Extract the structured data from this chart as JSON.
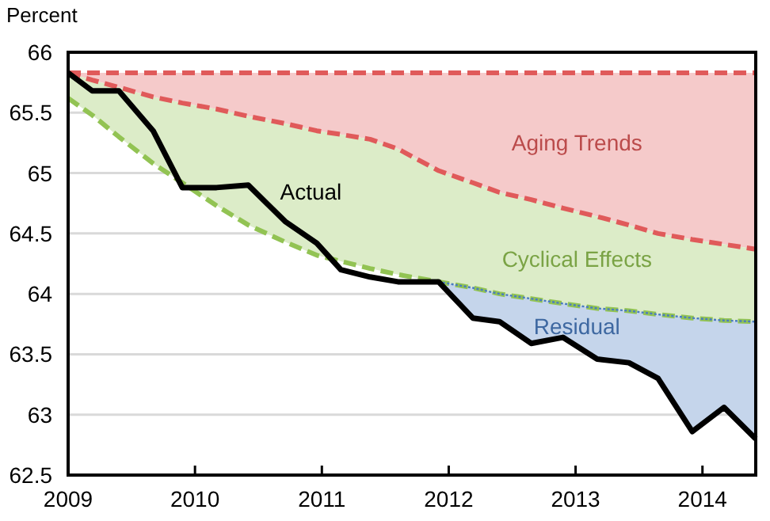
{
  "chart_data": {
    "type": "line",
    "ylabel": "Percent",
    "x": [
      2009,
      2009.19,
      2009.4,
      2009.67,
      2009.9,
      2010.17,
      2010.42,
      2010.71,
      2010.96,
      2011.15,
      2011.38,
      2011.6,
      2011.92,
      2012.19,
      2012.4,
      2012.65,
      2012.9,
      2013.17,
      2013.42,
      2013.65,
      2013.92,
      2014.17,
      2014.42
    ],
    "xlim": [
      2009,
      2014.42
    ],
    "xticks": [
      2009,
      2010,
      2011,
      2012,
      2013,
      2014
    ],
    "ylim": [
      62.5,
      66
    ],
    "yticks": [
      62.5,
      63,
      63.5,
      64,
      64.5,
      65,
      65.5,
      66
    ],
    "grid": "y",
    "legend": false,
    "marker": "none",
    "series": [
      {
        "color": "#e05a5a",
        "line_style": "dashed",
        "values": [
          65.83,
          65.83,
          65.83,
          65.83,
          65.83,
          65.83,
          65.83,
          65.83,
          65.83,
          65.83,
          65.83,
          65.83,
          65.83,
          65.83,
          65.83,
          65.83,
          65.83,
          65.83,
          65.83,
          65.83,
          65.83,
          65.83,
          65.83
        ]
      },
      {
        "name": "Aging Trends",
        "color": "#e05a5a",
        "line_style": "dashed",
        "values": [
          65.83,
          65.77,
          65.71,
          65.63,
          65.58,
          65.53,
          65.47,
          65.41,
          65.35,
          65.32,
          65.28,
          65.2,
          65.02,
          64.92,
          64.84,
          64.78,
          64.71,
          64.64,
          64.57,
          64.5,
          64.45,
          64.41,
          64.37
        ],
        "lower": [
          65.83,
          65.77,
          65.71,
          65.63,
          65.58,
          65.53,
          65.47,
          65.41,
          65.35,
          65.32,
          65.28,
          65.2,
          65.02,
          64.92,
          64.84,
          64.78,
          64.71,
          64.64,
          64.57,
          64.5,
          64.45,
          64.41,
          64.37
        ],
        "upper": [
          65.83,
          65.83,
          65.83,
          65.83,
          65.83,
          65.83,
          65.83,
          65.83,
          65.83,
          65.83,
          65.83,
          65.83,
          65.83,
          65.83,
          65.83,
          65.83,
          65.83,
          65.83,
          65.83,
          65.83,
          65.83,
          65.83,
          65.83
        ]
      },
      {
        "name": "Cyclical Effects",
        "color": "#92c353",
        "line_style": "dashed",
        "values": [
          65.62,
          65.48,
          65.3,
          65.08,
          64.92,
          64.73,
          64.57,
          64.43,
          64.32,
          64.27,
          64.21,
          64.16,
          64.1,
          64.05,
          64.0,
          63.96,
          63.92,
          63.88,
          63.86,
          63.83,
          63.8,
          63.78,
          63.77
        ],
        "lower": [
          65.62,
          65.48,
          65.3,
          65.08,
          64.92,
          64.73,
          64.57,
          64.43,
          64.32,
          64.27,
          64.21,
          64.16,
          64.1,
          64.05,
          64.0,
          63.96,
          63.92,
          63.88,
          63.86,
          63.83,
          63.8,
          63.78,
          63.77
        ],
        "upper": [
          65.83,
          65.77,
          65.71,
          65.63,
          65.58,
          65.53,
          65.47,
          65.41,
          65.35,
          65.32,
          65.28,
          65.2,
          65.02,
          64.92,
          64.84,
          64.78,
          64.71,
          64.64,
          64.57,
          64.5,
          64.45,
          64.41,
          64.37
        ]
      },
      {
        "name": "Residual",
        "color": "#4a7cc0",
        "line_style": "dotted",
        "values": [
          null,
          null,
          null,
          null,
          null,
          null,
          null,
          null,
          null,
          null,
          null,
          null,
          64.1,
          64.05,
          64.0,
          63.96,
          63.92,
          63.88,
          63.86,
          63.83,
          63.8,
          63.78,
          63.77
        ],
        "lower": [
          null,
          null,
          null,
          null,
          null,
          null,
          null,
          null,
          null,
          null,
          null,
          null,
          64.1,
          63.8,
          63.77,
          63.59,
          63.64,
          63.46,
          63.43,
          63.3,
          62.86,
          63.06,
          62.8
        ],
        "upper": [
          null,
          null,
          null,
          null,
          null,
          null,
          null,
          null,
          null,
          null,
          null,
          null,
          64.1,
          64.05,
          64.0,
          63.96,
          63.92,
          63.88,
          63.86,
          63.83,
          63.8,
          63.78,
          63.77
        ]
      },
      {
        "name": "Actual",
        "color": "#000000",
        "line_style": "solid",
        "values": [
          65.83,
          65.68,
          65.68,
          65.35,
          64.88,
          64.88,
          64.9,
          64.6,
          64.42,
          64.2,
          64.14,
          64.1,
          64.1,
          63.8,
          63.77,
          63.59,
          63.64,
          63.46,
          63.43,
          63.3,
          62.86,
          63.06,
          62.8
        ]
      }
    ]
  }
}
